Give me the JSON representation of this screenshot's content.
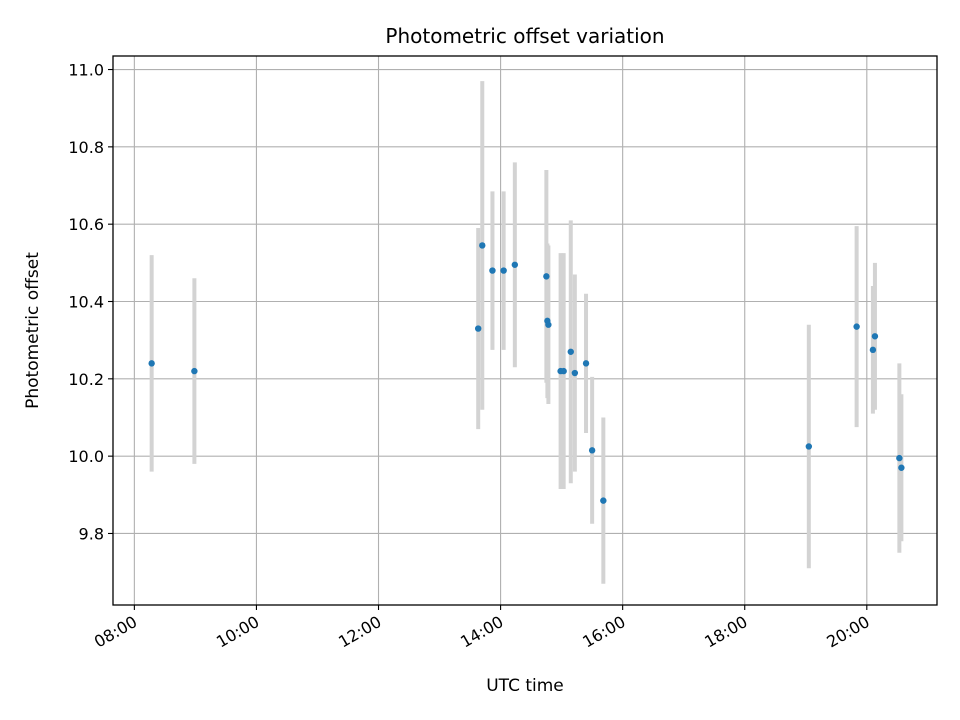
{
  "chart_data": {
    "type": "scatter",
    "title": "Photometric offset variation",
    "xlabel": "UTC time",
    "ylabel": "Photometric offset",
    "x_ticks": [
      "08:00",
      "10:00",
      "12:00",
      "14:00",
      "16:00",
      "18:00",
      "20:00"
    ],
    "y_ticks": [
      "9.8",
      "10.0",
      "10.2",
      "10.4",
      "10.6",
      "10.8",
      "11.0"
    ],
    "xlim": [
      "07:39",
      "21:09"
    ],
    "ylim": [
      9.615,
      11.035
    ],
    "grid": true,
    "colors": {
      "point": "#1f77b4",
      "errorbar": "#d3d3d3",
      "grid": "#b0b0b0"
    },
    "points": [
      {
        "x": "08:17",
        "y": 10.24,
        "yerr": 0.28
      },
      {
        "x": "08:59",
        "y": 10.22,
        "yerr": 0.24
      },
      {
        "x": "13:38",
        "y": 10.33,
        "yerr": 0.26
      },
      {
        "x": "13:42",
        "y": 10.545,
        "yerr": 0.425
      },
      {
        "x": "13:52",
        "y": 10.48,
        "yerr": 0.205
      },
      {
        "x": "14:03",
        "y": 10.48,
        "yerr": 0.205
      },
      {
        "x": "14:14",
        "y": 10.495,
        "yerr": 0.265
      },
      {
        "x": "14:45",
        "y": 10.465,
        "yerr": 0.275
      },
      {
        "x": "14:46",
        "y": 10.35,
        "yerr": 0.2
      },
      {
        "x": "14:47",
        "y": 10.34,
        "yerr": 0.205
      },
      {
        "x": "14:59",
        "y": 10.22,
        "yerr": 0.305
      },
      {
        "x": "15:02",
        "y": 10.22,
        "yerr": 0.305
      },
      {
        "x": "15:09",
        "y": 10.27,
        "yerr": 0.34
      },
      {
        "x": "15:13",
        "y": 10.215,
        "yerr": 0.255
      },
      {
        "x": "15:24",
        "y": 10.24,
        "yerr": 0.18
      },
      {
        "x": "15:30",
        "y": 10.015,
        "yerr": 0.19
      },
      {
        "x": "15:41",
        "y": 9.885,
        "yerr": 0.215
      },
      {
        "x": "19:03",
        "y": 10.025,
        "yerr": 0.315
      },
      {
        "x": "19:50",
        "y": 10.335,
        "yerr": 0.26
      },
      {
        "x": "20:06",
        "y": 10.275,
        "yerr": 0.165
      },
      {
        "x": "20:08",
        "y": 10.31,
        "yerr": 0.19
      },
      {
        "x": "20:32",
        "y": 9.995,
        "yerr": 0.245
      },
      {
        "x": "20:34",
        "y": 9.97,
        "yerr": 0.19
      }
    ]
  }
}
